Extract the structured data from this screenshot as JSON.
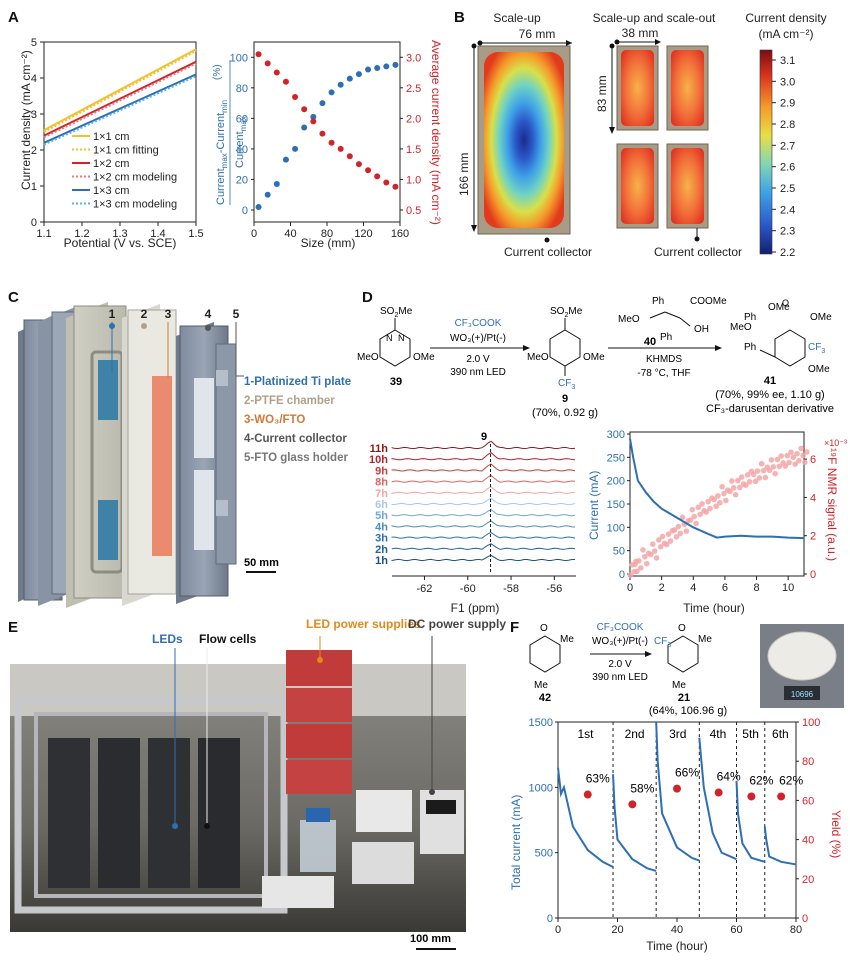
{
  "panels": {
    "A": "A",
    "B": "B",
    "C": "C",
    "D": "D",
    "E": "E",
    "F": "F"
  },
  "panelA": {
    "left": {
      "ylabel": "Current density (mA cm⁻²)",
      "xlabel": "Potential (V vs. SCE)",
      "xticks": [
        "1.1",
        "1.2",
        "1.3",
        "1.4",
        "1.5"
      ],
      "yticks": [
        "0",
        "1",
        "2",
        "3",
        "4",
        "5"
      ],
      "legend": [
        "1×1 cm",
        "1×1 cm fitting",
        "1×2 cm",
        "1×2 cm modeling",
        "1×3 cm",
        "1×3 cm modeling"
      ]
    },
    "right": {
      "ylabel_left": "Currentₘₐₓ-Currentₘᵢₙ / Currentₘₐₓ (%)",
      "ylabel_right": "Average current density (mA cm⁻²)",
      "xlabel": "Size (mm)",
      "xticks": [
        "0",
        "40",
        "80",
        "120",
        "160"
      ],
      "yticks_left": [
        "0",
        "20",
        "40",
        "60",
        "80",
        "100"
      ],
      "yticks_right": [
        "0.5",
        "1.0",
        "1.5",
        "2.0",
        "2.5",
        "3.0"
      ]
    }
  },
  "panelB": {
    "title1": "Scale-up",
    "title2": "Scale-up and scale-out",
    "dim_width": "76 mm",
    "dim_height": "166 mm",
    "dim_small_w": "38 mm",
    "dim_small_h": "83 mm",
    "collector1": "Current collector",
    "collector2": "Current collector",
    "colorbar_title1": "Current density",
    "colorbar_title2": "(mA cm⁻²)",
    "colorbar_ticks": [
      "3.1",
      "3.0",
      "2.9",
      "2.8",
      "2.7",
      "2.6",
      "2.5",
      "2.4",
      "2.3",
      "2.2"
    ]
  },
  "panelC": {
    "numbers": [
      "1",
      "2",
      "3",
      "4",
      "5"
    ],
    "legend": [
      "1-Platinized Ti plate",
      "2-PTFE chamber",
      "3-WO₃/FTO",
      "4-Current collector",
      "5-FTO glass holder"
    ],
    "scale": "50 mm"
  },
  "panelD": {
    "cmpd39": "39",
    "cmpd9": "9",
    "cmpd9_yield": "(70%, 0.92 g)",
    "cmpd40": "40",
    "cmpd41": "41",
    "cmpd41_yield": "(70%, 99% ee, 1.10 g)",
    "cmpd41_name": "CF₃-darusentan derivative",
    "cond1": [
      "CF₃COOK",
      "WO₃(+)/Pt(-)",
      "2.0 V",
      "390 nm LED"
    ],
    "cond2": [
      "KHMDS",
      "-78 °C, THF"
    ],
    "nmr": {
      "peak_label": "9",
      "times": [
        "11h",
        "10h",
        "9h",
        "8h",
        "7h",
        "6h",
        "5h",
        "4h",
        "3h",
        "2h",
        "1h"
      ],
      "xticks": [
        "-62",
        "-60",
        "-58",
        "-56"
      ],
      "xlabel": "F1 (ppm)"
    },
    "kinetics": {
      "ylabel_left": "Current (mA)",
      "ylabel_right": "¹⁹F NMR signal (a.u.)",
      "xlabel": "Time (hour)",
      "exp": "×10⁻³",
      "xticks": [
        "0",
        "2",
        "4",
        "6",
        "8",
        "10"
      ],
      "yticks_left": [
        "0",
        "50",
        "100",
        "150",
        "200",
        "250",
        "300"
      ],
      "yticks_right": [
        "0",
        "2",
        "4",
        "6"
      ]
    }
  },
  "panelE": {
    "labels": [
      "LEDs",
      "Flow cells",
      "LED power supplies",
      "DC power supply"
    ],
    "scale": "100 mm"
  },
  "panelF": {
    "cmpd42": "42",
    "cmpd21": "21",
    "cmpd21_yield": "(64%, 106.96 g)",
    "cond": [
      "CF₃COOK",
      "WO₃(+)/Pt(-)",
      "2.0 V",
      "390 nm LED"
    ],
    "me": "Me",
    "runs": [
      "1st",
      "2nd",
      "3rd",
      "4th",
      "5th",
      "6th"
    ],
    "yields": [
      "63%",
      "58%",
      "66%",
      "64%",
      "62%",
      "62%"
    ],
    "ylabel_left": "Total current (mA)",
    "ylabel_right": "Yield (%)",
    "xlabel": "Time (hour)",
    "xticks": [
      "0",
      "20",
      "40",
      "60",
      "80"
    ],
    "yticks_left": [
      "0",
      "500",
      "1000",
      "1500"
    ],
    "yticks_right": [
      "0",
      "20",
      "40",
      "60",
      "80",
      "100"
    ],
    "balance_reading": "10696"
  },
  "chart_data": [
    {
      "type": "line",
      "title": "",
      "xlabel": "Potential (V vs. SCE)",
      "ylabel": "Current density (mA cm⁻²)",
      "xlim": [
        1.1,
        1.5
      ],
      "ylim": [
        0,
        5
      ],
      "series": [
        {
          "name": "1×1 cm",
          "x": [
            1.1,
            1.5
          ],
          "y": [
            2.55,
            4.8
          ]
        },
        {
          "name": "1×1 cm fitting",
          "x": [
            1.1,
            1.5
          ],
          "y": [
            2.5,
            4.75
          ]
        },
        {
          "name": "1×2 cm",
          "x": [
            1.1,
            1.5
          ],
          "y": [
            2.4,
            4.45
          ]
        },
        {
          "name": "1×2 cm modeling",
          "x": [
            1.1,
            1.5
          ],
          "y": [
            2.35,
            4.4
          ]
        },
        {
          "name": "1×3 cm",
          "x": [
            1.1,
            1.5
          ],
          "y": [
            2.2,
            4.1
          ]
        },
        {
          "name": "1×3 cm modeling",
          "x": [
            1.1,
            1.5
          ],
          "y": [
            2.15,
            4.05
          ]
        }
      ],
      "colors": [
        "#f2c12e",
        "#f2c12e",
        "#d2232a",
        "#e77b7b",
        "#2e6fb3",
        "#5ab4e0"
      ]
    },
    {
      "type": "scatter",
      "xlabel": "Size (mm)",
      "xlim": [
        0,
        160
      ],
      "series": [
        {
          "axis": "left",
          "ylim": [
            0,
            110
          ],
          "color": "#2e6fb3",
          "x": [
            5,
            15,
            25,
            35,
            45,
            55,
            65,
            75,
            85,
            95,
            105,
            115,
            125,
            135,
            145,
            155
          ],
          "y": [
            2,
            10,
            17,
            33,
            40,
            54,
            61,
            70,
            77,
            82,
            86,
            89,
            92,
            93,
            94,
            95
          ]
        },
        {
          "axis": "right",
          "ylim": [
            0.5,
            3.25
          ],
          "color": "#d2232a",
          "x": [
            5,
            15,
            25,
            35,
            45,
            55,
            65,
            75,
            85,
            95,
            105,
            115,
            125,
            135,
            145,
            155
          ],
          "y": [
            3.05,
            2.9,
            2.75,
            2.6,
            2.35,
            2.15,
            1.95,
            1.75,
            1.6,
            1.5,
            1.38,
            1.25,
            1.15,
            1.05,
            0.95,
            0.88
          ]
        }
      ]
    },
    {
      "type": "line",
      "xlabel": "Time (hour)",
      "xlim": [
        0,
        11
      ],
      "series": [
        {
          "axis": "left",
          "ylim": [
            0,
            300
          ],
          "color": "#2e6fb3",
          "x": [
            0,
            0.2,
            0.5,
            1,
            1.5,
            2,
            3,
            4,
            5,
            5.5,
            6,
            7,
            8,
            9,
            10,
            11
          ],
          "y": [
            290,
            250,
            200,
            175,
            155,
            140,
            120,
            100,
            85,
            78,
            80,
            82,
            80,
            80,
            78,
            77
          ]
        },
        {
          "axis": "right",
          "ylim": [
            0,
            7
          ],
          "color": "#f4a6a6",
          "kind": "scatter",
          "x": [
            0.2,
            0.5,
            1,
            1.5,
            2,
            2.5,
            3,
            3.5,
            4,
            4.5,
            5,
            5.5,
            6,
            6.5,
            7,
            7.5,
            8,
            8.5,
            9,
            9.5,
            10,
            10.5,
            11
          ],
          "y": [
            0.3,
            0.5,
            0.9,
            1.2,
            1.6,
            1.9,
            2.3,
            2.6,
            3.0,
            3.3,
            3.6,
            3.9,
            4.2,
            4.5,
            4.7,
            5.0,
            5.2,
            5.4,
            5.6,
            5.8,
            6.0,
            6.1,
            6.2
          ]
        }
      ]
    },
    {
      "type": "line",
      "xlabel": "Time (hour)",
      "xlim": [
        0,
        80
      ],
      "series": [
        {
          "axis": "left",
          "ylim": [
            0,
            1500
          ],
          "color": "#2e6fb3",
          "segments": [
            {
              "x": [
                0,
                1,
                2,
                5,
                10,
                15,
                18.5
              ],
              "y": [
                1150,
                950,
                1000,
                700,
                520,
                430,
                390
              ]
            },
            {
              "x": [
                18.5,
                19,
                20,
                25,
                30,
                33
              ],
              "y": [
                1100,
                850,
                600,
                450,
                380,
                360
              ]
            },
            {
              "x": [
                33,
                33.5,
                35,
                40,
                45,
                47.5
              ],
              "y": [
                1500,
                1200,
                800,
                540,
                460,
                440
              ]
            },
            {
              "x": [
                47.5,
                48,
                49,
                52,
                55,
                60
              ],
              "y": [
                1380,
                1250,
                1000,
                650,
                500,
                450
              ]
            },
            {
              "x": [
                60,
                60.5,
                62,
                65,
                69.5
              ],
              "y": [
                1050,
                800,
                570,
                460,
                430
              ]
            },
            {
              "x": [
                69.5,
                70,
                71,
                75,
                80
              ],
              "y": [
                700,
                600,
                470,
                430,
                410
              ]
            }
          ]
        },
        {
          "axis": "right",
          "ylim": [
            0,
            100
          ],
          "color": "#d2232a",
          "kind": "scatter",
          "x": [
            10,
            25,
            40,
            54,
            65,
            75
          ],
          "y": [
            63,
            58,
            66,
            64,
            62,
            62
          ]
        }
      ],
      "separators": [
        18.5,
        33,
        47.5,
        60,
        69.5
      ]
    }
  ]
}
